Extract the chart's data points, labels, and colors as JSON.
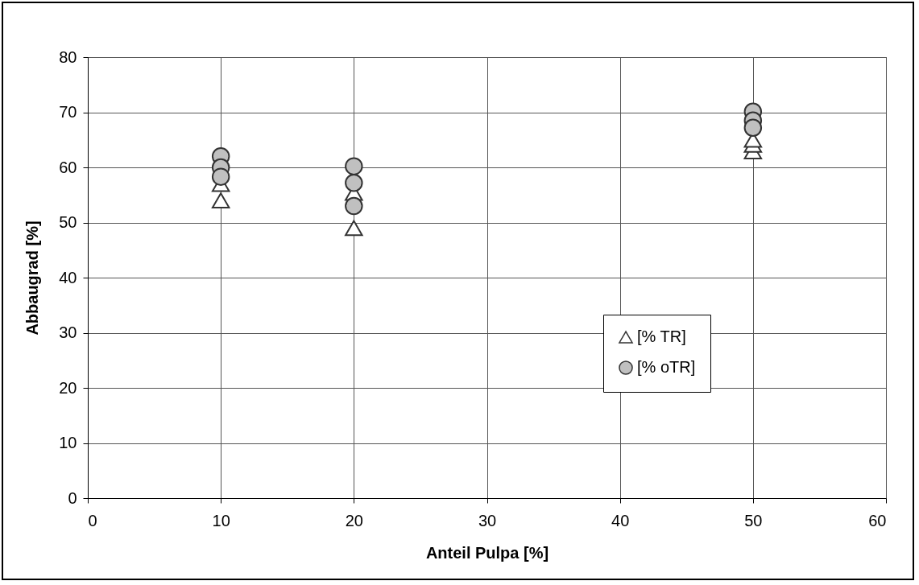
{
  "chart_data": {
    "type": "scatter",
    "xlabel": "Anteil Pulpa [%]",
    "ylabel": "Abbaugrad [%]",
    "xlim": [
      0,
      60
    ],
    "xticks": [
      0,
      10,
      20,
      30,
      40,
      50,
      60
    ],
    "ylim": [
      0,
      80
    ],
    "yticks": [
      0,
      10,
      20,
      30,
      40,
      50,
      60,
      70,
      80
    ],
    "grid": true,
    "legend": "bottom right",
    "series": [
      {
        "name": "[% TR]",
        "color": "#ffffff",
        "marker": "triangle",
        "x": [
          10,
          10,
          20,
          20,
          50,
          50,
          50
        ],
        "values": [
          57,
          54,
          49,
          55.4,
          62.9,
          64.1,
          65
        ]
      },
      {
        "name": "[% oTR]",
        "color": "#c0c0c0",
        "marker": "circle",
        "x": [
          10,
          10,
          10,
          20,
          20,
          20,
          50,
          50,
          50
        ],
        "values": [
          62,
          60,
          58.3,
          60.2,
          57.2,
          53,
          70.1,
          68.5,
          67.2
        ]
      }
    ]
  }
}
